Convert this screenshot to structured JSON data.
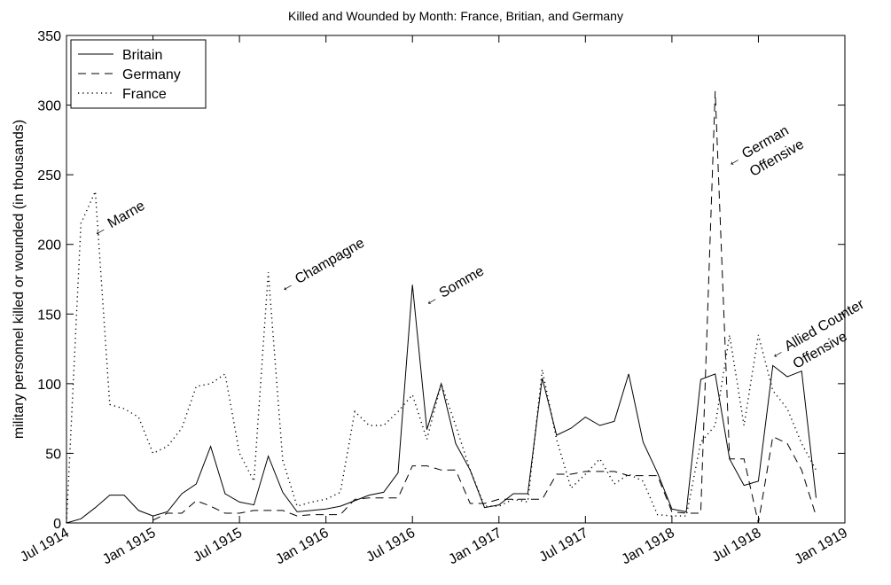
{
  "chart_data": {
    "type": "line",
    "title": "Killed and Wounded by Month: France, Britian, and Germany",
    "ylabel": "military personnel killed or wounded (in thousands)",
    "x": [
      "1914-07",
      "1914-08",
      "1914-09",
      "1914-10",
      "1914-11",
      "1914-12",
      "1915-01",
      "1915-02",
      "1915-03",
      "1915-04",
      "1915-05",
      "1915-06",
      "1915-07",
      "1915-08",
      "1915-09",
      "1915-10",
      "1915-11",
      "1915-12",
      "1916-01",
      "1916-02",
      "1916-03",
      "1916-04",
      "1916-05",
      "1916-06",
      "1916-07",
      "1916-08",
      "1916-09",
      "1916-10",
      "1916-11",
      "1916-12",
      "1917-01",
      "1917-02",
      "1917-03",
      "1917-04",
      "1917-05",
      "1917-06",
      "1917-07",
      "1917-08",
      "1917-09",
      "1917-10",
      "1917-11",
      "1917-12",
      "1918-01",
      "1918-02",
      "1918-03",
      "1918-04",
      "1918-05",
      "1918-06",
      "1918-07",
      "1918-08",
      "1918-09",
      "1918-10",
      "1918-11"
    ],
    "series": [
      {
        "name": "Britain",
        "color": "#000000",
        "linestyle": "solid",
        "values": [
          0,
          3,
          11,
          20,
          20,
          9,
          5,
          8,
          21,
          28,
          55,
          21,
          15,
          13,
          48,
          22,
          8,
          9,
          10,
          12,
          16,
          20,
          22,
          36,
          171,
          67,
          100,
          57,
          38,
          11,
          13,
          21,
          21,
          104,
          63,
          68,
          76,
          70,
          73,
          107,
          58,
          36,
          10,
          8,
          103,
          107,
          46,
          27,
          30,
          113,
          105,
          109,
          18
        ]
      },
      {
        "name": "Germany",
        "color": "#000000",
        "linestyle": "dashed",
        "values": [
          null,
          null,
          null,
          null,
          null,
          null,
          2,
          7,
          7,
          16,
          12,
          7,
          7,
          9,
          9,
          9,
          5,
          6,
          6,
          6,
          17,
          18,
          18,
          18,
          41,
          41,
          38,
          38,
          14,
          14,
          17,
          17,
          17,
          17,
          35,
          35,
          37,
          37,
          37,
          34,
          34,
          34,
          8,
          7,
          7,
          310,
          46,
          46,
          0,
          62,
          57,
          38,
          5
        ]
      },
      {
        "name": "France",
        "color": "#000000",
        "linestyle": "dotted",
        "values": [
          0,
          215,
          238,
          85,
          82,
          76,
          50,
          55,
          68,
          98,
          100,
          107,
          50,
          30,
          180,
          45,
          12,
          15,
          17,
          22,
          80,
          70,
          70,
          80,
          92,
          60,
          100,
          70,
          38,
          12,
          12,
          17,
          15,
          110,
          60,
          25,
          35,
          46,
          28,
          35,
          30,
          6,
          5,
          5,
          58,
          70,
          135,
          70,
          135,
          95,
          82,
          57,
          38
        ]
      }
    ],
    "xlim": [
      "1914-07",
      "1919-01"
    ],
    "xticks": [
      {
        "value": "1914-07",
        "label": "Jul 1914"
      },
      {
        "value": "1915-01",
        "label": "Jan 1915"
      },
      {
        "value": "1915-07",
        "label": "Jul 1915"
      },
      {
        "value": "1916-01",
        "label": "Jan 1916"
      },
      {
        "value": "1916-07",
        "label": "Jul 1916"
      },
      {
        "value": "1917-01",
        "label": "Jan 1917"
      },
      {
        "value": "1917-07",
        "label": "Jul 1917"
      },
      {
        "value": "1918-01",
        "label": "Jan 1918"
      },
      {
        "value": "1918-07",
        "label": "Jul 1918"
      },
      {
        "value": "1919-01",
        "label": "Jan 1919"
      }
    ],
    "ylim": [
      0,
      350
    ],
    "yticks": [
      0,
      50,
      100,
      150,
      200,
      250,
      300,
      350
    ],
    "grid": false,
    "legend": "upper-left",
    "annotations": [
      {
        "text": [
          "← Marne"
        ],
        "x": "1914-09",
        "y": 205
      },
      {
        "text": [
          "← Champagne"
        ],
        "x": "1915-10",
        "y": 165
      },
      {
        "text": [
          "← Somme"
        ],
        "x": "1916-08",
        "y": 155
      },
      {
        "text": [
          "← German",
          "Offensive"
        ],
        "x": "1918-05",
        "y": 255
      },
      {
        "text": [
          "← Allied Counter",
          "Offensive"
        ],
        "x": "1918-08",
        "y": 117
      }
    ]
  }
}
